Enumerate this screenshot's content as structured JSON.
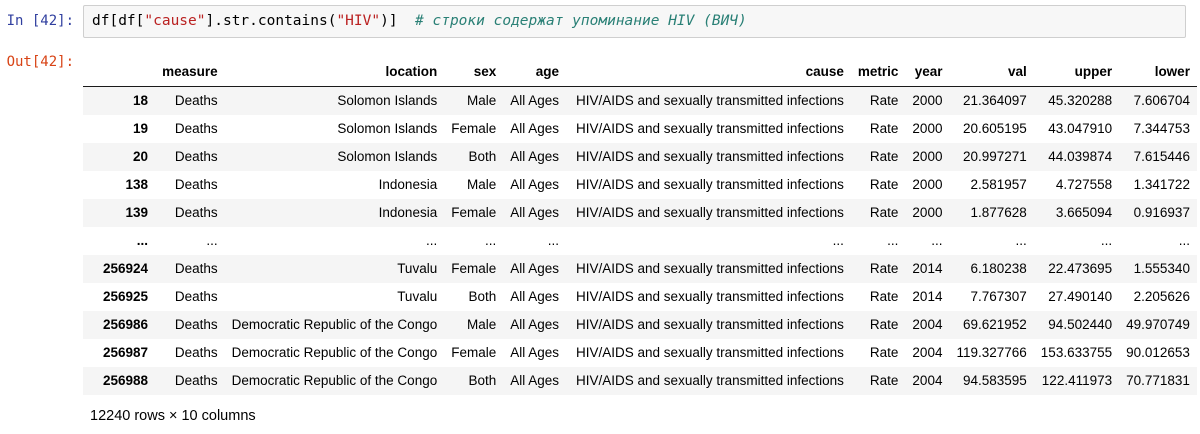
{
  "cell": {
    "input_prompt": "In [42]:",
    "output_prompt": "Out[42]:"
  },
  "code": {
    "segments": [
      {
        "type": "plain",
        "text": "df[df["
      },
      {
        "type": "string",
        "text": "\"cause\""
      },
      {
        "type": "plain",
        "text": "].str.contains("
      },
      {
        "type": "string",
        "text": "\"HIV\""
      },
      {
        "type": "plain",
        "text": ")]  "
      },
      {
        "type": "comment",
        "text": "# строки содержат упоминание HIV (ВИЧ)"
      }
    ]
  },
  "table": {
    "columns": [
      "",
      "measure",
      "location",
      "sex",
      "age",
      "cause",
      "metric",
      "year",
      "val",
      "upper",
      "lower"
    ],
    "rows": [
      [
        "18",
        "Deaths",
        "Solomon Islands",
        "Male",
        "All Ages",
        "HIV/AIDS and sexually transmitted infections",
        "Rate",
        "2000",
        "21.364097",
        "45.320288",
        "7.606704"
      ],
      [
        "19",
        "Deaths",
        "Solomon Islands",
        "Female",
        "All Ages",
        "HIV/AIDS and sexually transmitted infections",
        "Rate",
        "2000",
        "20.605195",
        "43.047910",
        "7.344753"
      ],
      [
        "20",
        "Deaths",
        "Solomon Islands",
        "Both",
        "All Ages",
        "HIV/AIDS and sexually transmitted infections",
        "Rate",
        "2000",
        "20.997271",
        "44.039874",
        "7.615446"
      ],
      [
        "138",
        "Deaths",
        "Indonesia",
        "Male",
        "All Ages",
        "HIV/AIDS and sexually transmitted infections",
        "Rate",
        "2000",
        "2.581957",
        "4.727558",
        "1.341722"
      ],
      [
        "139",
        "Deaths",
        "Indonesia",
        "Female",
        "All Ages",
        "HIV/AIDS and sexually transmitted infections",
        "Rate",
        "2000",
        "1.877628",
        "3.665094",
        "0.916937"
      ],
      [
        "...",
        "...",
        "...",
        "...",
        "...",
        "...",
        "...",
        "...",
        "...",
        "...",
        "..."
      ],
      [
        "256924",
        "Deaths",
        "Tuvalu",
        "Female",
        "All Ages",
        "HIV/AIDS and sexually transmitted infections",
        "Rate",
        "2014",
        "6.180238",
        "22.473695",
        "1.555340"
      ],
      [
        "256925",
        "Deaths",
        "Tuvalu",
        "Both",
        "All Ages",
        "HIV/AIDS and sexually transmitted infections",
        "Rate",
        "2014",
        "7.767307",
        "27.490140",
        "2.205626"
      ],
      [
        "256986",
        "Deaths",
        "Democratic Republic of the Congo",
        "Male",
        "All Ages",
        "HIV/AIDS and sexually transmitted infections",
        "Rate",
        "2004",
        "69.621952",
        "94.502440",
        "49.970749"
      ],
      [
        "256987",
        "Deaths",
        "Democratic Republic of the Congo",
        "Female",
        "All Ages",
        "HIV/AIDS and sexually transmitted infections",
        "Rate",
        "2004",
        "119.327766",
        "153.633755",
        "90.012653"
      ],
      [
        "256988",
        "Deaths",
        "Democratic Republic of the Congo",
        "Both",
        "All Ages",
        "HIV/AIDS and sexually transmitted infections",
        "Rate",
        "2004",
        "94.583595",
        "122.411973",
        "70.771831"
      ]
    ],
    "footer": "12240 rows × 10 columns"
  },
  "colors": {
    "in_prompt": "#303F9F",
    "out_prompt": "#D84315",
    "string": "#BA2121",
    "comment": "#2a8076",
    "row_stripe": "#f5f5f5",
    "code_background": "#f7f7f7",
    "code_border": "#cfcfcf"
  }
}
